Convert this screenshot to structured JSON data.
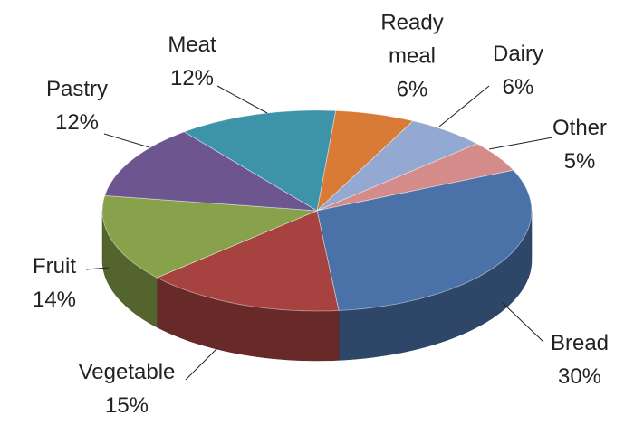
{
  "chart_data": {
    "type": "pie3d",
    "categories": [
      "Ready meal",
      "Dairy",
      "Other",
      "Bread",
      "Vegetable",
      "Fruit",
      "Pastry",
      "Meat"
    ],
    "values": [
      6,
      6,
      5,
      30,
      15,
      14,
      12,
      12
    ],
    "value_labels": [
      "6%",
      "6%",
      "5%",
      "30%",
      "15%",
      "14%",
      "12%",
      "12%"
    ],
    "colors": [
      "#d97b37",
      "#93a9d2",
      "#d48b89",
      "#4a72a8",
      "#a64340",
      "#87a24a",
      "#6d5690",
      "#3d93a8"
    ]
  }
}
